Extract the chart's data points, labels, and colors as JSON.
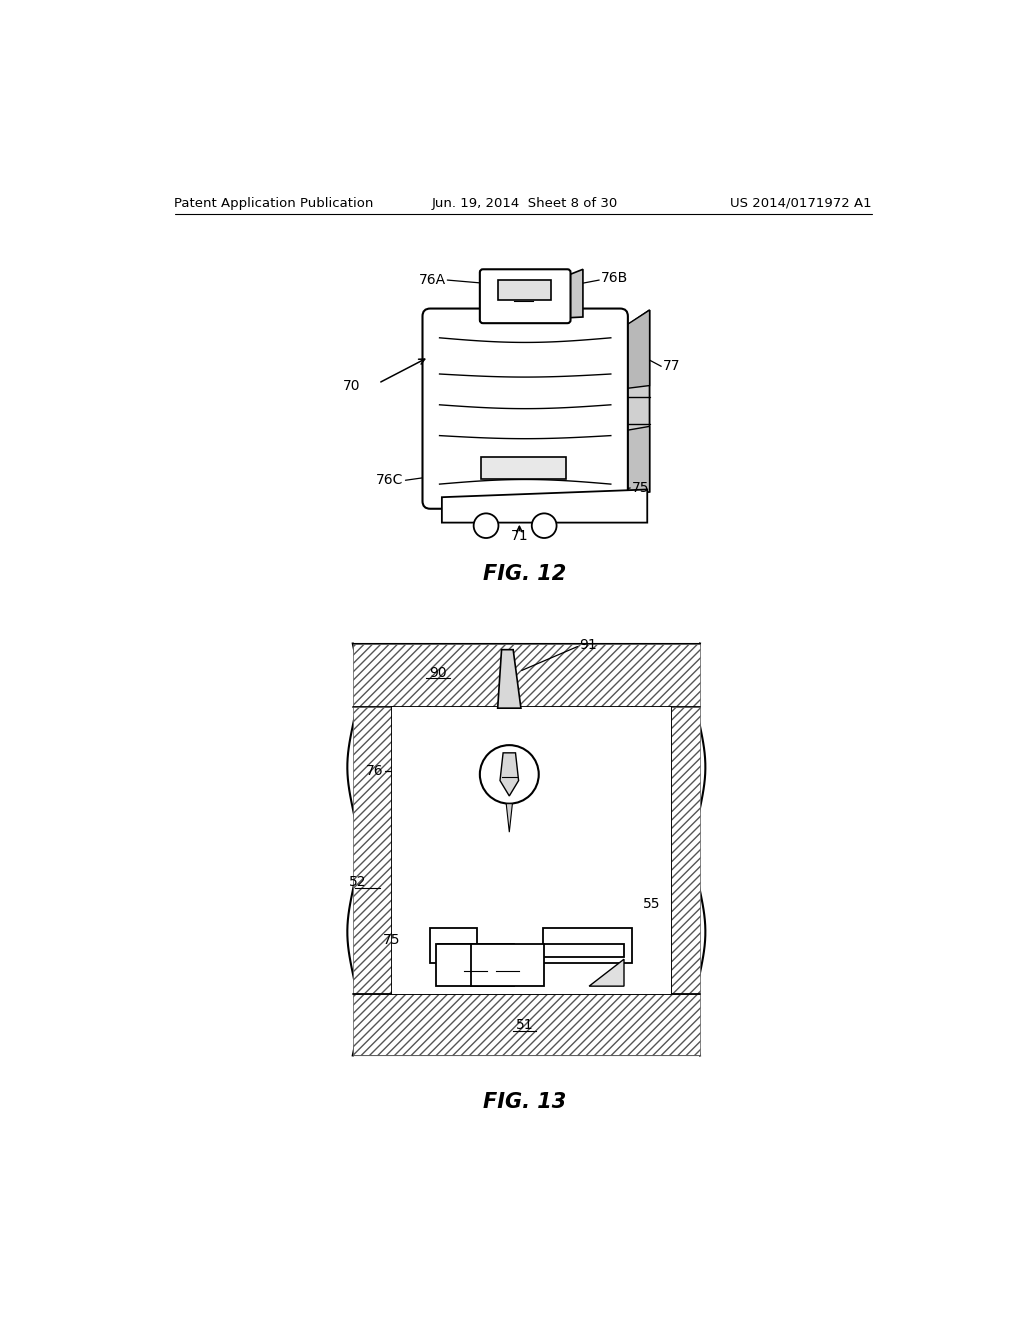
{
  "background_color": "#ffffff",
  "header_left": "Patent Application Publication",
  "header_center": "Jun. 19, 2014  Sheet 8 of 30",
  "header_right": "US 2014/0171972 A1",
  "fig12_title": "FIG. 12",
  "fig13_title": "FIG. 13",
  "line_color": "#000000",
  "label_fontsize": 10,
  "header_fontsize": 9.5,
  "title_fontsize": 15
}
